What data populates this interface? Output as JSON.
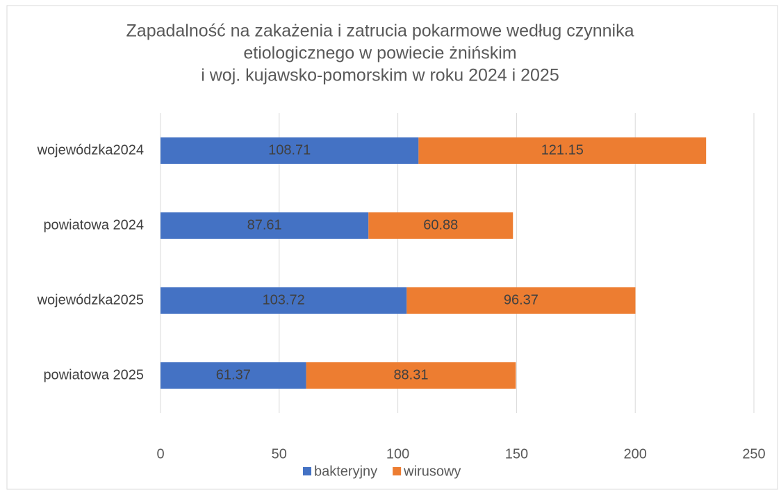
{
  "chart_data": {
    "type": "stacked-barh",
    "title": [
      "Zapadalność na zakażenia i zatrucia pokarmowe według czynnika",
      "etiologicznego w powiecie żnińskim",
      "i woj. kujawsko-pomorskim w roku 2024 i 2025"
    ],
    "categories": [
      "wojewódzka2024",
      "powiatowa 2024",
      "wojewódzka2025",
      "powiatowa 2025"
    ],
    "series": [
      {
        "name": "bakteryjny",
        "color": "#4472c4",
        "values": [
          108.71,
          87.61,
          103.72,
          61.37
        ]
      },
      {
        "name": "wirusowy",
        "color": "#ed7d31",
        "values": [
          121.15,
          60.88,
          96.37,
          88.31
        ]
      }
    ],
    "xlim": [
      0,
      250
    ],
    "xticks": [
      0,
      50,
      100,
      150,
      200,
      250
    ],
    "grid": true,
    "legend": "bottom"
  }
}
